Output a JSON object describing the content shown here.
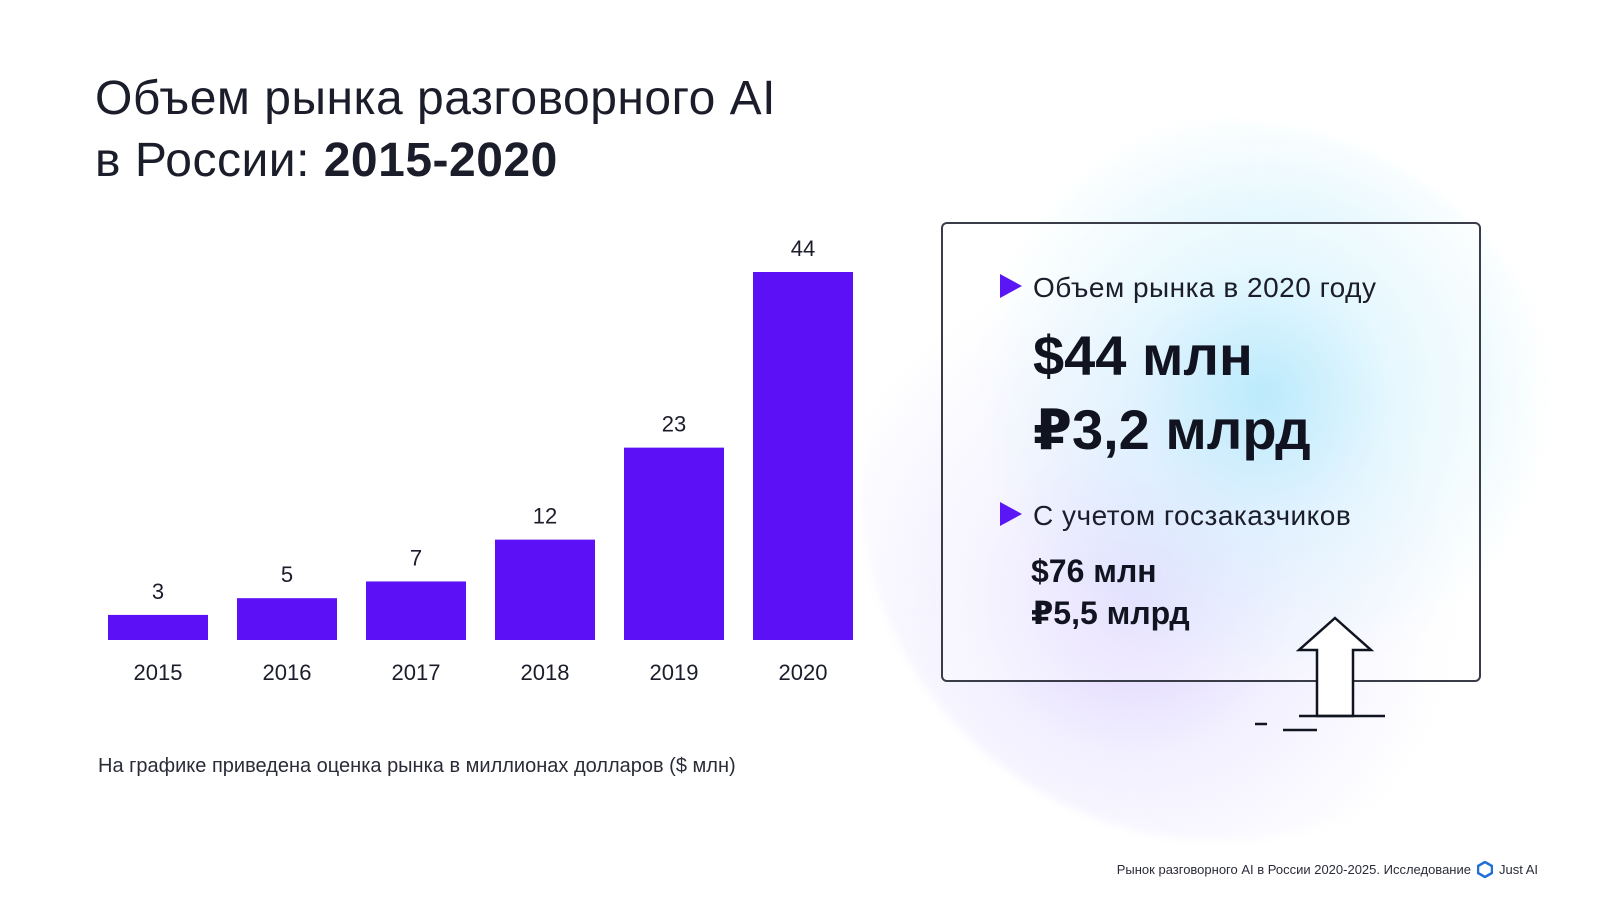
{
  "header": {
    "title_line1": "Объем рынка разговорного AI",
    "title_line2_prefix": "в России: ",
    "title_line2_bold": "2015-2020"
  },
  "chart_data": {
    "type": "bar",
    "categories": [
      "2015",
      "2016",
      "2017",
      "2018",
      "2019",
      "2020"
    ],
    "values": [
      3,
      5,
      7,
      12,
      23,
      44
    ],
    "bar_color": "#5b10f5",
    "ylim": [
      0,
      44
    ],
    "grid": false
  },
  "note": "На графике приведена оценка рынка в миллионах долларов ($ млн)",
  "card": {
    "item1_label": "Объем рынка в 2020 году",
    "item1_usd": "$44 млн",
    "item1_rub": "₽3,2 млрд",
    "item2_label": "С учетом госзаказчиков",
    "item2_usd": "$76 млн",
    "item2_rub": "₽5,5 млрд",
    "accent_color": "#5a16f5"
  },
  "footer": {
    "text": "Рынок разговорного AI в России 2020-2025. Исследование",
    "brand": "Just AI",
    "brand_icon": "just-ai-logo-icon"
  }
}
